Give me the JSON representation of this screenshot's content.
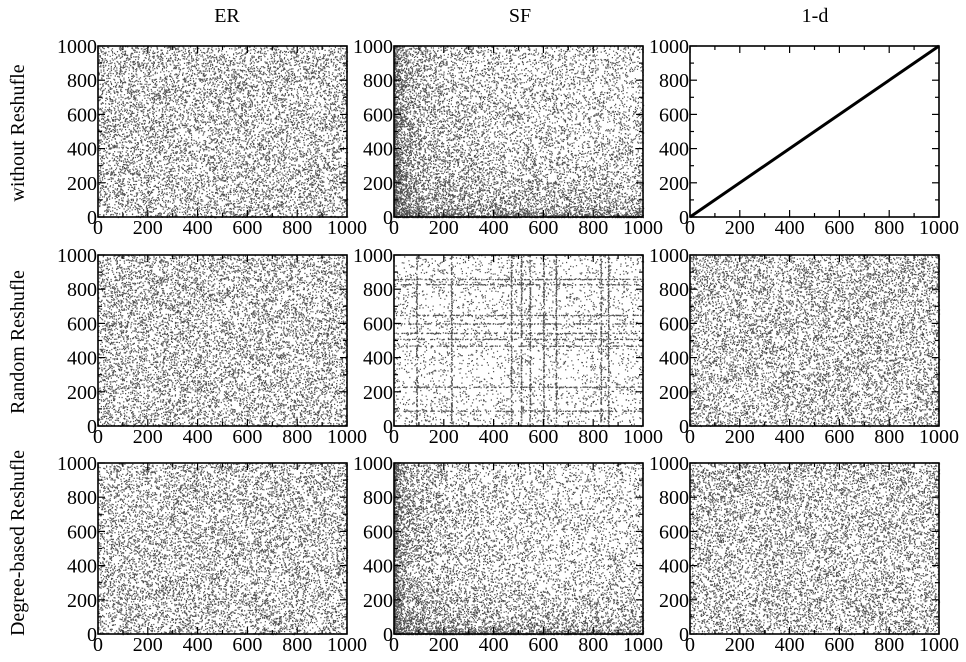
{
  "figure": {
    "column_titles": [
      "ER",
      "SF",
      "1-d"
    ],
    "row_titles": [
      "without Reshufle",
      "Random Reshufle",
      "Degree-based Reshufle"
    ]
  },
  "chart_data": [
    {
      "type": "scatter",
      "network": "ER",
      "ordering": "without Reshufle",
      "pattern": "uniform",
      "n_points": 9000,
      "xlim": [
        0,
        1000
      ],
      "ylim": [
        0,
        1000
      ],
      "xticks": [
        0,
        200,
        400,
        600,
        800,
        1000
      ],
      "yticks": [
        0,
        200,
        400,
        600,
        800,
        1000
      ],
      "point_color": "#333333"
    },
    {
      "type": "scatter",
      "network": "SF",
      "ordering": "without Reshufle",
      "pattern": "dense-near-axes",
      "n_points": 11000,
      "xlim": [
        0,
        1000
      ],
      "ylim": [
        0,
        1000
      ],
      "xticks": [
        0,
        200,
        400,
        600,
        800,
        1000
      ],
      "yticks": [
        0,
        200,
        400,
        600,
        800,
        1000
      ],
      "point_color": "#333333"
    },
    {
      "type": "line",
      "network": "1-d",
      "ordering": "without Reshufle",
      "pattern": "diagonal",
      "x": [
        0,
        1000
      ],
      "y": [
        0,
        1000
      ],
      "xlim": [
        0,
        1000
      ],
      "ylim": [
        0,
        1000
      ],
      "xticks": [
        0,
        200,
        400,
        600,
        800,
        1000
      ],
      "yticks": [
        0,
        200,
        400,
        600,
        800,
        1000
      ],
      "point_color": "#000000"
    },
    {
      "type": "scatter",
      "network": "ER",
      "ordering": "Random Reshufle",
      "pattern": "uniform",
      "n_points": 9000,
      "xlim": [
        0,
        1000
      ],
      "ylim": [
        0,
        1000
      ],
      "xticks": [
        0,
        200,
        400,
        600,
        800,
        1000
      ],
      "yticks": [
        0,
        200,
        400,
        600,
        800,
        1000
      ],
      "point_color": "#333333"
    },
    {
      "type": "scatter",
      "network": "SF",
      "ordering": "Random Reshufle",
      "pattern": "sparse-with-hub-lines",
      "n_points": 3000,
      "hub_positions": [
        90,
        230,
        470,
        510,
        545,
        600,
        650,
        830,
        860
      ],
      "xlim": [
        0,
        1000
      ],
      "ylim": [
        0,
        1000
      ],
      "xticks": [
        0,
        200,
        400,
        600,
        800,
        1000
      ],
      "yticks": [
        0,
        200,
        400,
        600,
        800,
        1000
      ],
      "point_color": "#333333"
    },
    {
      "type": "scatter",
      "network": "1-d",
      "ordering": "Random Reshufle",
      "pattern": "uniform",
      "n_points": 9000,
      "xlim": [
        0,
        1000
      ],
      "ylim": [
        0,
        1000
      ],
      "xticks": [
        0,
        200,
        400,
        600,
        800,
        1000
      ],
      "yticks": [
        0,
        200,
        400,
        600,
        800,
        1000
      ],
      "point_color": "#333333"
    },
    {
      "type": "scatter",
      "network": "ER",
      "ordering": "Degree-based Reshufle",
      "pattern": "uniform",
      "n_points": 9000,
      "xlim": [
        0,
        1000
      ],
      "ylim": [
        0,
        1000
      ],
      "xticks": [
        0,
        200,
        400,
        600,
        800,
        1000
      ],
      "yticks": [
        0,
        200,
        400,
        600,
        800,
        1000
      ],
      "point_color": "#333333"
    },
    {
      "type": "scatter",
      "network": "SF",
      "ordering": "Degree-based Reshufle",
      "pattern": "dense-near-axes",
      "n_points": 10000,
      "xlim": [
        0,
        1000
      ],
      "ylim": [
        0,
        1000
      ],
      "xticks": [
        0,
        200,
        400,
        600,
        800,
        1000
      ],
      "yticks": [
        0,
        200,
        400,
        600,
        800,
        1000
      ],
      "point_color": "#333333"
    },
    {
      "type": "scatter",
      "network": "1-d",
      "ordering": "Degree-based Reshufle",
      "pattern": "uniform",
      "n_points": 9000,
      "xlim": [
        0,
        1000
      ],
      "ylim": [
        0,
        1000
      ],
      "xticks": [
        0,
        200,
        400,
        600,
        800,
        1000
      ],
      "yticks": [
        0,
        200,
        400,
        600,
        800,
        1000
      ],
      "point_color": "#333333"
    }
  ]
}
